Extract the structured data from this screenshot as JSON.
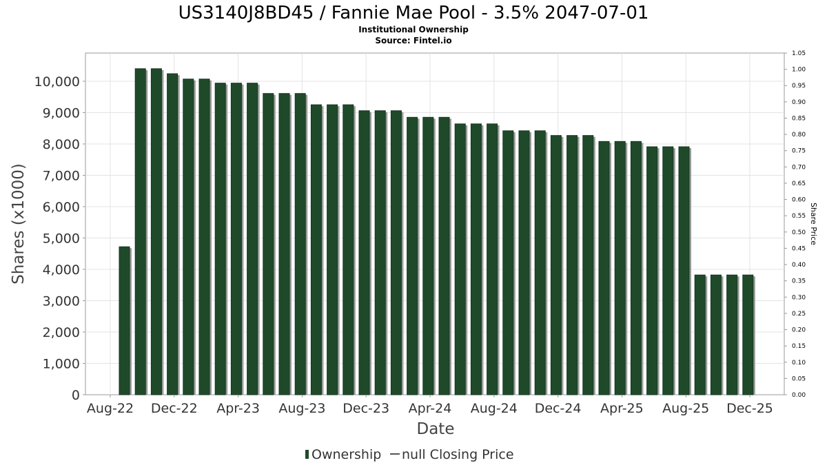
{
  "chart_data": {
    "type": "bar",
    "title": "US3140J8BD45 / Fannie Mae Pool - 3.5% 2047-07-01",
    "subtitle": "Institutional Ownership",
    "source": "Source: Fintel.io",
    "xlabel": "Date",
    "ylabel": "Shares (x1000)",
    "y2label": "Share Price",
    "ylim": [
      0,
      10900
    ],
    "y2lim": [
      0,
      1.05
    ],
    "yticks": [
      "0",
      "1,000",
      "2,000",
      "3,000",
      "4,000",
      "5,000",
      "6,000",
      "7,000",
      "8,000",
      "9,000",
      "10,000"
    ],
    "y2ticks": [
      "0.00",
      "0.05",
      "0.10",
      "0.15",
      "0.20",
      "0.25",
      "0.30",
      "0.35",
      "0.40",
      "0.45",
      "0.50",
      "0.55",
      "0.60",
      "0.65",
      "0.70",
      "0.75",
      "0.80",
      "0.85",
      "0.90",
      "0.95",
      "1.00",
      "1.05"
    ],
    "xticks": [
      "Aug-22",
      "Dec-22",
      "Apr-23",
      "Aug-23",
      "Dec-23",
      "Apr-24",
      "Aug-24",
      "Dec-24",
      "Apr-25",
      "Aug-25",
      "Dec-25"
    ],
    "grid": true,
    "legend_position": "bottom-center",
    "series": [
      {
        "name": "Ownership",
        "color": "#1f4a2a",
        "values": [
          4720,
          10400,
          10400,
          10240,
          10070,
          10070,
          9940,
          9940,
          9940,
          9610,
          9610,
          9610,
          9250,
          9250,
          9250,
          9060,
          9060,
          9060,
          8850,
          8850,
          8850,
          8640,
          8640,
          8640,
          8420,
          8420,
          8420,
          8270,
          8270,
          8270,
          8080,
          8080,
          8080,
          7910,
          7910,
          7910,
          3820,
          3820,
          3820,
          3820
        ]
      },
      {
        "name": "null Closing Price",
        "color": "#555555",
        "values": []
      }
    ]
  }
}
